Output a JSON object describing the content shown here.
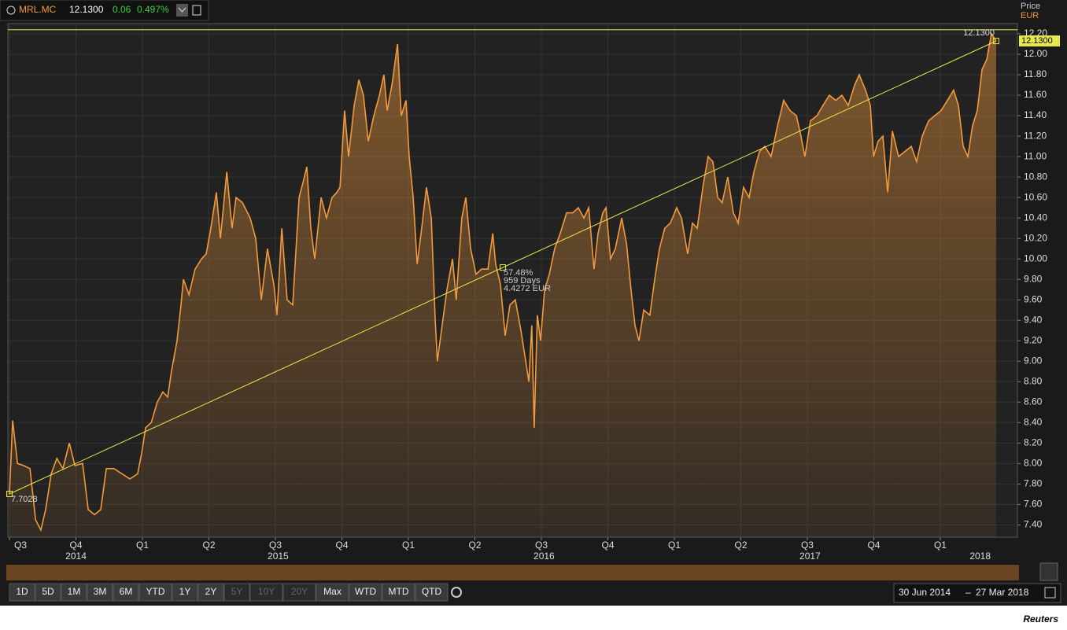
{
  "header": {
    "symbol": "MRL.MC",
    "price": "12.1300",
    "change": "0.06",
    "change_pct": "0.497%"
  },
  "chart_data": {
    "type": "area",
    "price_label": "Price",
    "currency_label": "EUR",
    "last_price_label": "12.1300",
    "color": "#f39a3c",
    "xlim": [
      2014.494,
      2018.29
    ],
    "ylim": [
      7.28,
      12.3
    ],
    "yticks": [
      {
        "value": 7.4,
        "label": "7.40"
      },
      {
        "value": 7.6,
        "label": "7.60"
      },
      {
        "value": 7.8,
        "label": "7.80"
      },
      {
        "value": 8.0,
        "label": "8.00"
      },
      {
        "value": 8.2,
        "label": "8.20"
      },
      {
        "value": 8.4,
        "label": "8.40"
      },
      {
        "value": 8.6,
        "label": "8.60"
      },
      {
        "value": 8.8,
        "label": "8.80"
      },
      {
        "value": 9.0,
        "label": "9.00"
      },
      {
        "value": 9.2,
        "label": "9.20"
      },
      {
        "value": 9.4,
        "label": "9.40"
      },
      {
        "value": 9.6,
        "label": "9.60"
      },
      {
        "value": 9.8,
        "label": "9.80"
      },
      {
        "value": 10.0,
        "label": "10.00"
      },
      {
        "value": 10.2,
        "label": "10.20"
      },
      {
        "value": 10.4,
        "label": "10.40"
      },
      {
        "value": 10.6,
        "label": "10.60"
      },
      {
        "value": 10.8,
        "label": "10.80"
      },
      {
        "value": 11.0,
        "label": "11.00"
      },
      {
        "value": 11.2,
        "label": "11.20"
      },
      {
        "value": 11.4,
        "label": "11.40"
      },
      {
        "value": 11.6,
        "label": "11.60"
      },
      {
        "value": 11.8,
        "label": "11.80"
      },
      {
        "value": 12.0,
        "label": "12.00"
      },
      {
        "value": 12.2,
        "label": "12.20"
      }
    ],
    "xticks": [
      {
        "value": 2014.5,
        "label": "Q3"
      },
      {
        "value": 2014.75,
        "label": "Q4"
      },
      {
        "value": 2015.0,
        "label": "Q1"
      },
      {
        "value": 2015.25,
        "label": "Q2"
      },
      {
        "value": 2015.5,
        "label": "Q3"
      },
      {
        "value": 2015.75,
        "label": "Q4"
      },
      {
        "value": 2016.0,
        "label": "Q1"
      },
      {
        "value": 2016.25,
        "label": "Q2"
      },
      {
        "value": 2016.5,
        "label": "Q3"
      },
      {
        "value": 2016.75,
        "label": "Q4"
      },
      {
        "value": 2017.0,
        "label": "Q1"
      },
      {
        "value": 2017.25,
        "label": "Q2"
      },
      {
        "value": 2017.5,
        "label": "Q3"
      },
      {
        "value": 2017.75,
        "label": "Q4"
      },
      {
        "value": 2018.0,
        "label": "Q1"
      }
    ],
    "year_labels": [
      {
        "value": 2014.75,
        "label": "2014"
      },
      {
        "value": 2015.51,
        "label": "2015"
      },
      {
        "value": 2016.51,
        "label": "2016"
      },
      {
        "value": 2017.51,
        "label": "2017"
      },
      {
        "value": 2018.15,
        "label": "2018"
      }
    ],
    "grid": true,
    "hline": 12.24,
    "x": [
      2014.5,
      2014.512,
      2014.53,
      2014.553,
      2014.577,
      2014.598,
      2014.618,
      2014.636,
      2014.657,
      2014.678,
      2014.701,
      2014.725,
      2014.746,
      2014.775,
      2014.796,
      2014.82,
      2014.843,
      2014.864,
      2014.893,
      2014.923,
      2014.953,
      2014.982,
      2014.997,
      2015.012,
      2015.033,
      2015.056,
      2015.077,
      2015.095,
      2015.109,
      2015.13,
      2015.145,
      2015.154,
      2015.175,
      2015.198,
      2015.222,
      2015.24,
      2015.257,
      2015.278,
      2015.293,
      2015.317,
      2015.337,
      2015.352,
      2015.376,
      2015.405,
      2015.426,
      2015.447,
      2015.47,
      2015.494,
      2015.506,
      2015.524,
      2015.544,
      2015.565,
      2015.589,
      2015.604,
      2015.618,
      2015.633,
      2015.648,
      2015.672,
      2015.692,
      2015.713,
      2015.731,
      2015.743,
      2015.76,
      2015.775,
      2015.796,
      2015.814,
      2015.831,
      2015.849,
      2015.87,
      2015.891,
      2015.908,
      2015.92,
      2015.938,
      2015.959,
      2015.973,
      2015.991,
      2016.003,
      2016.018,
      2016.033,
      2016.05,
      2016.068,
      2016.086,
      2016.101,
      2016.109,
      2016.127,
      2016.145,
      2016.166,
      2016.18,
      2016.201,
      2016.216,
      2016.234,
      2016.254,
      2016.275,
      2016.299,
      2016.317,
      2016.328,
      2016.346,
      2016.364,
      2016.382,
      2016.402,
      2016.423,
      2016.441,
      2016.453,
      2016.464,
      2016.473,
      2016.485,
      2016.497,
      2016.512,
      2016.53,
      2016.55,
      2016.571,
      2016.595,
      2016.618,
      2016.639,
      2016.66,
      2016.678,
      2016.698,
      2016.713,
      2016.731,
      2016.743,
      2016.76,
      2016.778,
      2016.802,
      2016.82,
      2016.837,
      2016.852,
      2016.867,
      2016.885,
      2016.908,
      2016.926,
      2016.944,
      2016.964,
      2016.985,
      2017.009,
      2017.027,
      2017.05,
      2017.068,
      2017.086,
      2017.107,
      2017.127,
      2017.145,
      2017.163,
      2017.18,
      2017.201,
      2017.222,
      2017.24,
      2017.26,
      2017.281,
      2017.299,
      2017.32,
      2017.34,
      2017.364,
      2017.388,
      2017.411,
      2017.435,
      2017.459,
      2017.476,
      2017.491,
      2017.512,
      2017.536,
      2017.559,
      2017.583,
      2017.607,
      2017.63,
      2017.654,
      2017.678,
      2017.695,
      2017.719,
      2017.737,
      2017.749,
      2017.766,
      2017.784,
      2017.802,
      2017.82,
      2017.843,
      2017.867,
      2017.891,
      2017.911,
      2017.932,
      2017.956,
      2017.979,
      2018.003,
      2018.027,
      2018.05,
      2018.068,
      2018.086,
      2018.104,
      2018.121,
      2018.139,
      2018.157,
      2018.175,
      2018.192,
      2018.21
    ],
    "series": [
      {
        "name": "MRL.MC",
        "color": "#f39a3c",
        "values": [
          7.7,
          8.42,
          8.0,
          7.98,
          7.95,
          7.45,
          7.35,
          7.55,
          7.9,
          8.05,
          7.95,
          8.2,
          7.98,
          8.0,
          7.55,
          7.5,
          7.55,
          7.95,
          7.95,
          7.9,
          7.85,
          7.9,
          8.1,
          8.35,
          8.4,
          8.6,
          8.7,
          8.65,
          8.9,
          9.2,
          9.55,
          9.8,
          9.65,
          9.9,
          10.0,
          10.05,
          10.3,
          10.65,
          10.2,
          10.85,
          10.3,
          10.6,
          10.55,
          10.4,
          10.2,
          9.6,
          10.1,
          9.75,
          9.45,
          10.3,
          9.6,
          9.55,
          10.6,
          10.75,
          10.9,
          10.3,
          10.0,
          10.6,
          10.4,
          10.6,
          10.65,
          10.7,
          11.45,
          11.0,
          11.5,
          11.75,
          11.6,
          11.15,
          11.4,
          11.6,
          11.8,
          11.45,
          11.7,
          12.1,
          11.4,
          11.55,
          11.0,
          10.6,
          9.95,
          10.3,
          10.7,
          10.4,
          9.4,
          9.0,
          9.35,
          9.7,
          10.0,
          9.6,
          10.4,
          10.6,
          10.1,
          9.85,
          9.9,
          9.9,
          10.25,
          9.95,
          9.75,
          9.25,
          9.55,
          9.6,
          9.3,
          9.0,
          8.8,
          9.35,
          8.35,
          9.45,
          9.2,
          9.7,
          9.85,
          10.1,
          10.25,
          10.45,
          10.45,
          10.5,
          10.4,
          10.5,
          9.9,
          10.25,
          10.45,
          10.5,
          10.0,
          10.1,
          10.4,
          10.15,
          9.7,
          9.35,
          9.2,
          9.5,
          9.45,
          9.8,
          10.1,
          10.3,
          10.35,
          10.5,
          10.4,
          10.05,
          10.35,
          10.3,
          10.7,
          11.0,
          10.95,
          10.6,
          10.55,
          10.8,
          10.45,
          10.35,
          10.7,
          10.6,
          10.85,
          11.05,
          11.1,
          11.0,
          11.3,
          11.55,
          11.45,
          11.4,
          11.2,
          11.0,
          11.35,
          11.4,
          11.5,
          11.6,
          11.55,
          11.6,
          11.5,
          11.7,
          11.8,
          11.65,
          11.5,
          11.0,
          11.15,
          11.2,
          10.65,
          11.25,
          11.0,
          11.05,
          11.1,
          10.95,
          11.2,
          11.35,
          11.4,
          11.45,
          11.55,
          11.65,
          11.5,
          11.1,
          11.0,
          11.3,
          11.45,
          11.85,
          11.95,
          12.2,
          12.13
        ]
      }
    ],
    "trend": {
      "x": [
        2014.5,
        2018.21
      ],
      "values": [
        7.7028,
        12.13
      ],
      "start_label": "7.7028",
      "end_label": "12.1300",
      "mid_labels": [
        "57.48%",
        "959 Days",
        "4.4272 EUR"
      ]
    }
  },
  "toolbar": {
    "buttons": [
      {
        "label": "1D",
        "enabled": true
      },
      {
        "label": "5D",
        "enabled": true
      },
      {
        "label": "1M",
        "enabled": true
      },
      {
        "label": "3M",
        "enabled": true
      },
      {
        "label": "6M",
        "enabled": true
      },
      {
        "label": "YTD",
        "enabled": true
      },
      {
        "label": "1Y",
        "enabled": true
      },
      {
        "label": "2Y",
        "enabled": true
      },
      {
        "label": "5Y",
        "enabled": false
      },
      {
        "label": "10Y",
        "enabled": false
      },
      {
        "label": "20Y",
        "enabled": false
      },
      {
        "label": "Max",
        "enabled": true
      },
      {
        "label": "WTD",
        "enabled": true
      },
      {
        "label": "MTD",
        "enabled": true
      },
      {
        "label": "QTD",
        "enabled": true
      }
    ]
  },
  "date_range": {
    "from": "30 Jun 2014",
    "to": "27 Mar 2018"
  },
  "footer": "Reuters"
}
